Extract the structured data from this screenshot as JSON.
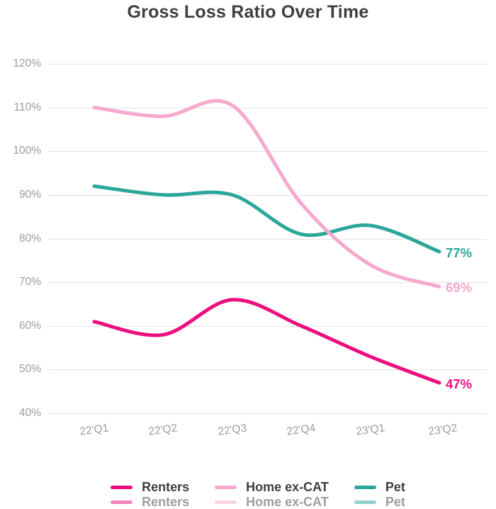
{
  "title": "Gross Loss Ratio Over Time",
  "chart_data": {
    "type": "line",
    "title": "Gross Loss Ratio Over Time",
    "x_categories": [
      "22'Q1",
      "22'Q2",
      "22'Q3",
      "22'Q4",
      "23'Q1",
      "23'Q2"
    ],
    "y_ticks": [
      "120%",
      "110%",
      "100%",
      "90%",
      "80%",
      "70%",
      "60%",
      "50%",
      "40%"
    ],
    "y_range": [
      40,
      120
    ],
    "y_unit": "%",
    "grid": "horizontal",
    "legend_position": "bottom",
    "series": [
      {
        "name": "Renters",
        "color": "#ec0e80",
        "values": [
          61,
          58,
          66,
          60,
          53,
          47
        ],
        "end_label": "47%"
      },
      {
        "name": "Home ex-CAT",
        "color": "#f7a8cd",
        "values": [
          110,
          108,
          110.5,
          88,
          74,
          69
        ],
        "end_label": "69%"
      },
      {
        "name": "Pet",
        "color": "#2aa79a",
        "values": [
          92,
          90,
          90,
          81,
          83,
          77
        ],
        "end_label": "77%"
      }
    ],
    "colors": {
      "title_text": "#3e3e3e",
      "axis_text": "#9c9c9c",
      "gridline": "#e4e4e4",
      "background": "#ffffff"
    }
  }
}
